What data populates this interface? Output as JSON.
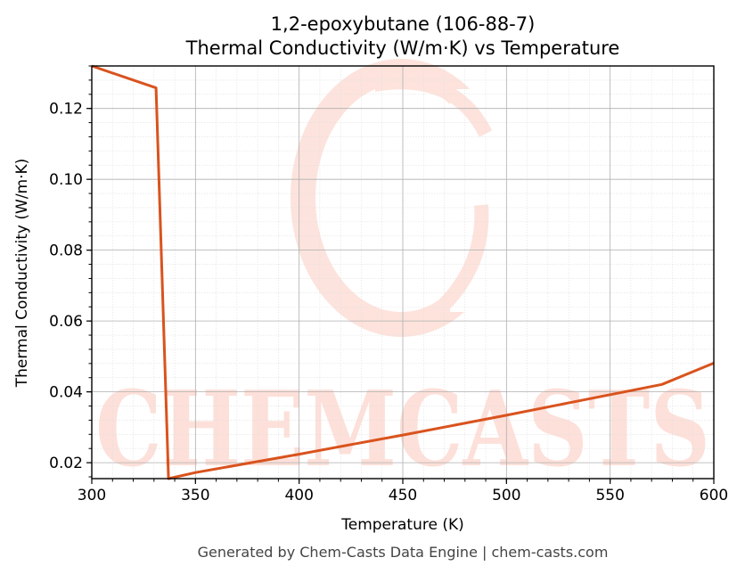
{
  "title_line1": "1,2-epoxybutane (106-88-7)",
  "title_line2": "Thermal Conductivity (W/m·K) vs Temperature",
  "footer": "Generated by Chem-Casts Data Engine | chem-casts.com",
  "watermark": "CHEMCASTS",
  "colors": {
    "line": "#d9531e",
    "watermark": "#fde0d9",
    "grid_major": "#b0b0b0",
    "grid_minor": "#e0e0e0"
  },
  "chart_data": {
    "type": "line",
    "xlabel": "Temperature (K)",
    "ylabel": "Thermal Conductivity (W/m·K)",
    "xlim": [
      300,
      600
    ],
    "ylim": [
      0.0155,
      0.132
    ],
    "xticks": [
      300,
      350,
      400,
      450,
      500,
      550,
      600
    ],
    "yticks": [
      0.02,
      0.04,
      0.06,
      0.08,
      0.1,
      0.12
    ],
    "xtick_labels": [
      "300",
      "350",
      "400",
      "450",
      "500",
      "550",
      "600"
    ],
    "ytick_labels": [
      "0.02",
      "0.04",
      "0.06",
      "0.08",
      "0.10",
      "0.12"
    ],
    "grid": true,
    "minor_grid": true,
    "series": [
      {
        "x": [
          300,
          331,
          337,
          350,
          375,
          400,
          425,
          450,
          475,
          500,
          525,
          550,
          575,
          600
        ],
        "y": [
          0.132,
          0.1258,
          0.0155,
          0.0172,
          0.0198,
          0.0224,
          0.0251,
          0.0278,
          0.0306,
          0.0334,
          0.0363,
          0.0392,
          0.0421,
          0.0481
        ]
      }
    ]
  }
}
